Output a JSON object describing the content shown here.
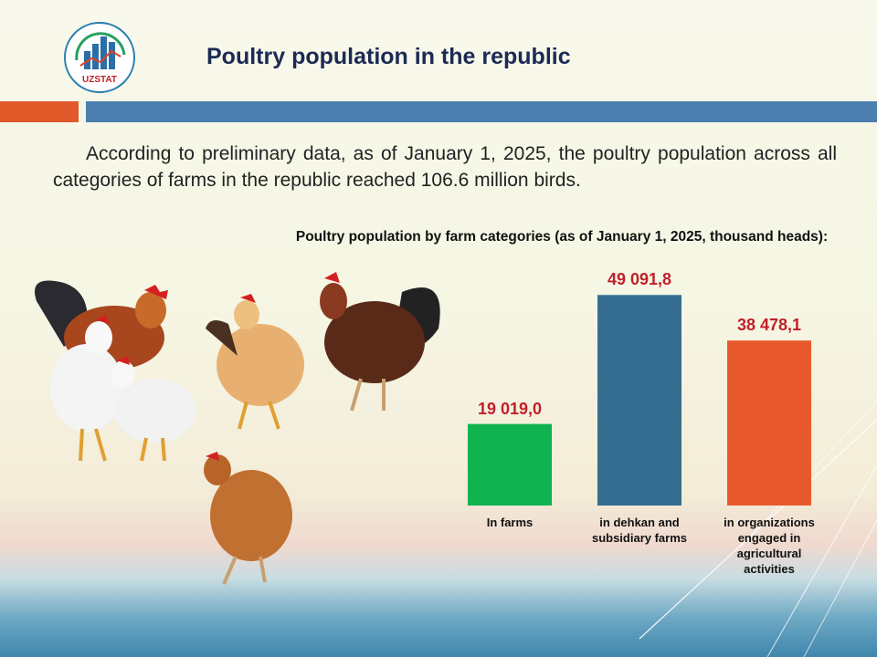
{
  "header": {
    "title": "Poultry population in the republic",
    "logo_text": "UZSTAT"
  },
  "intro": "According to preliminary data, as of January 1, 2025, the poultry population across all categories of farms in the republic reached 106.6 million birds.",
  "colors": {
    "accent_orange": "#e05a2a",
    "accent_blue": "#4b7fb0",
    "value_red": "#c0202a"
  },
  "chart_data": {
    "type": "bar",
    "title": "Poultry population by farm categories (as of January 1, 2025, thousand heads):",
    "categories": [
      "In farms",
      "in dehkan and subsidiary farms",
      "in organizations engaged in agricultural activities"
    ],
    "values": [
      19019.0,
      49091.8,
      38478.1
    ],
    "value_labels": [
      "19 019,0",
      "49 091,8",
      "38 478,1"
    ],
    "bar_colors": [
      "#0fb350",
      "#356e90",
      "#e85a2e"
    ],
    "xlabel": "",
    "ylabel": "",
    "ylim": [
      0,
      50000
    ],
    "grid": false
  }
}
